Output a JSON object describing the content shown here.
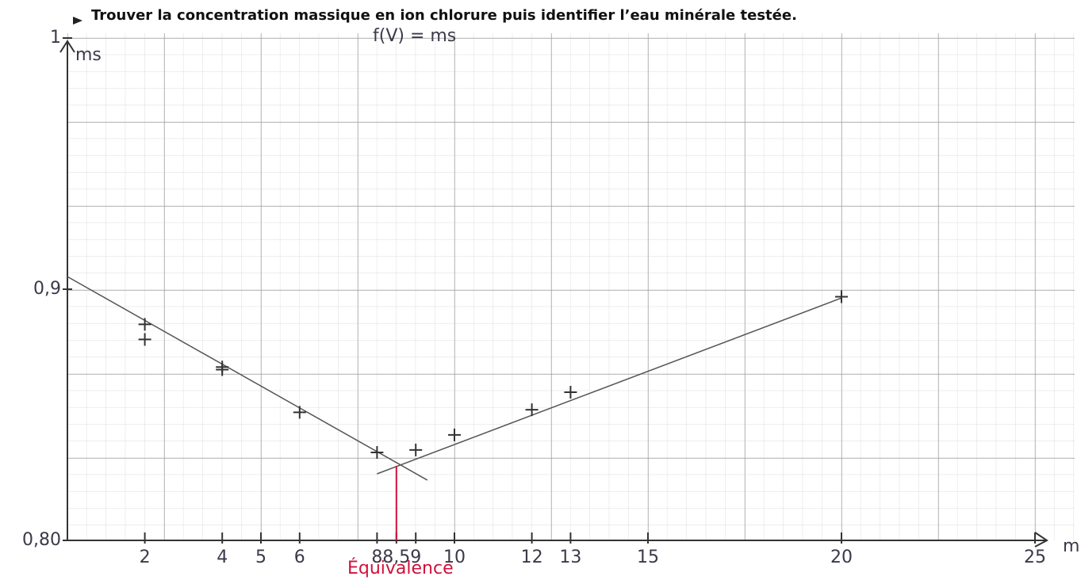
{
  "header": "Trouver la concentration massique en ion chlorure puis identifier l’eau minérale testée.",
  "chart_data": {
    "type": "scatter",
    "title": "f(V) = ms",
    "y_label": "ms",
    "x_label": "m",
    "x": [
      2,
      2,
      4,
      4,
      6,
      8,
      9,
      10,
      12,
      13,
      20
    ],
    "values": [
      0.886,
      0.88,
      0.869,
      0.868,
      0.851,
      0.835,
      0.836,
      0.842,
      0.852,
      0.859,
      0.897
    ],
    "color": "#333333",
    "xlim": [
      0,
      25
    ],
    "ylim": [
      0.8,
      1.0
    ],
    "xticks": [
      2,
      4,
      5,
      6,
      8,
      {
        "value": 8.5,
        "label": "8,5"
      },
      9,
      10,
      12,
      13,
      15,
      20,
      25
    ],
    "yticks": [
      {
        "value": 0.8,
        "label": "0,80"
      },
      {
        "value": 0.9,
        "label": "0,9"
      },
      1
    ],
    "fit_lines": [
      {
        "x": [
          0,
          9.3
        ],
        "values": [
          0.905,
          0.824
        ],
        "color": "#555555"
      },
      {
        "x": [
          8,
          20
        ],
        "values": [
          0.8265,
          0.8965
        ],
        "color": "#555555"
      }
    ],
    "equivalence": {
      "x": 8.5,
      "label": "Équivalence",
      "color": "#d0103a"
    },
    "grid": true
  }
}
